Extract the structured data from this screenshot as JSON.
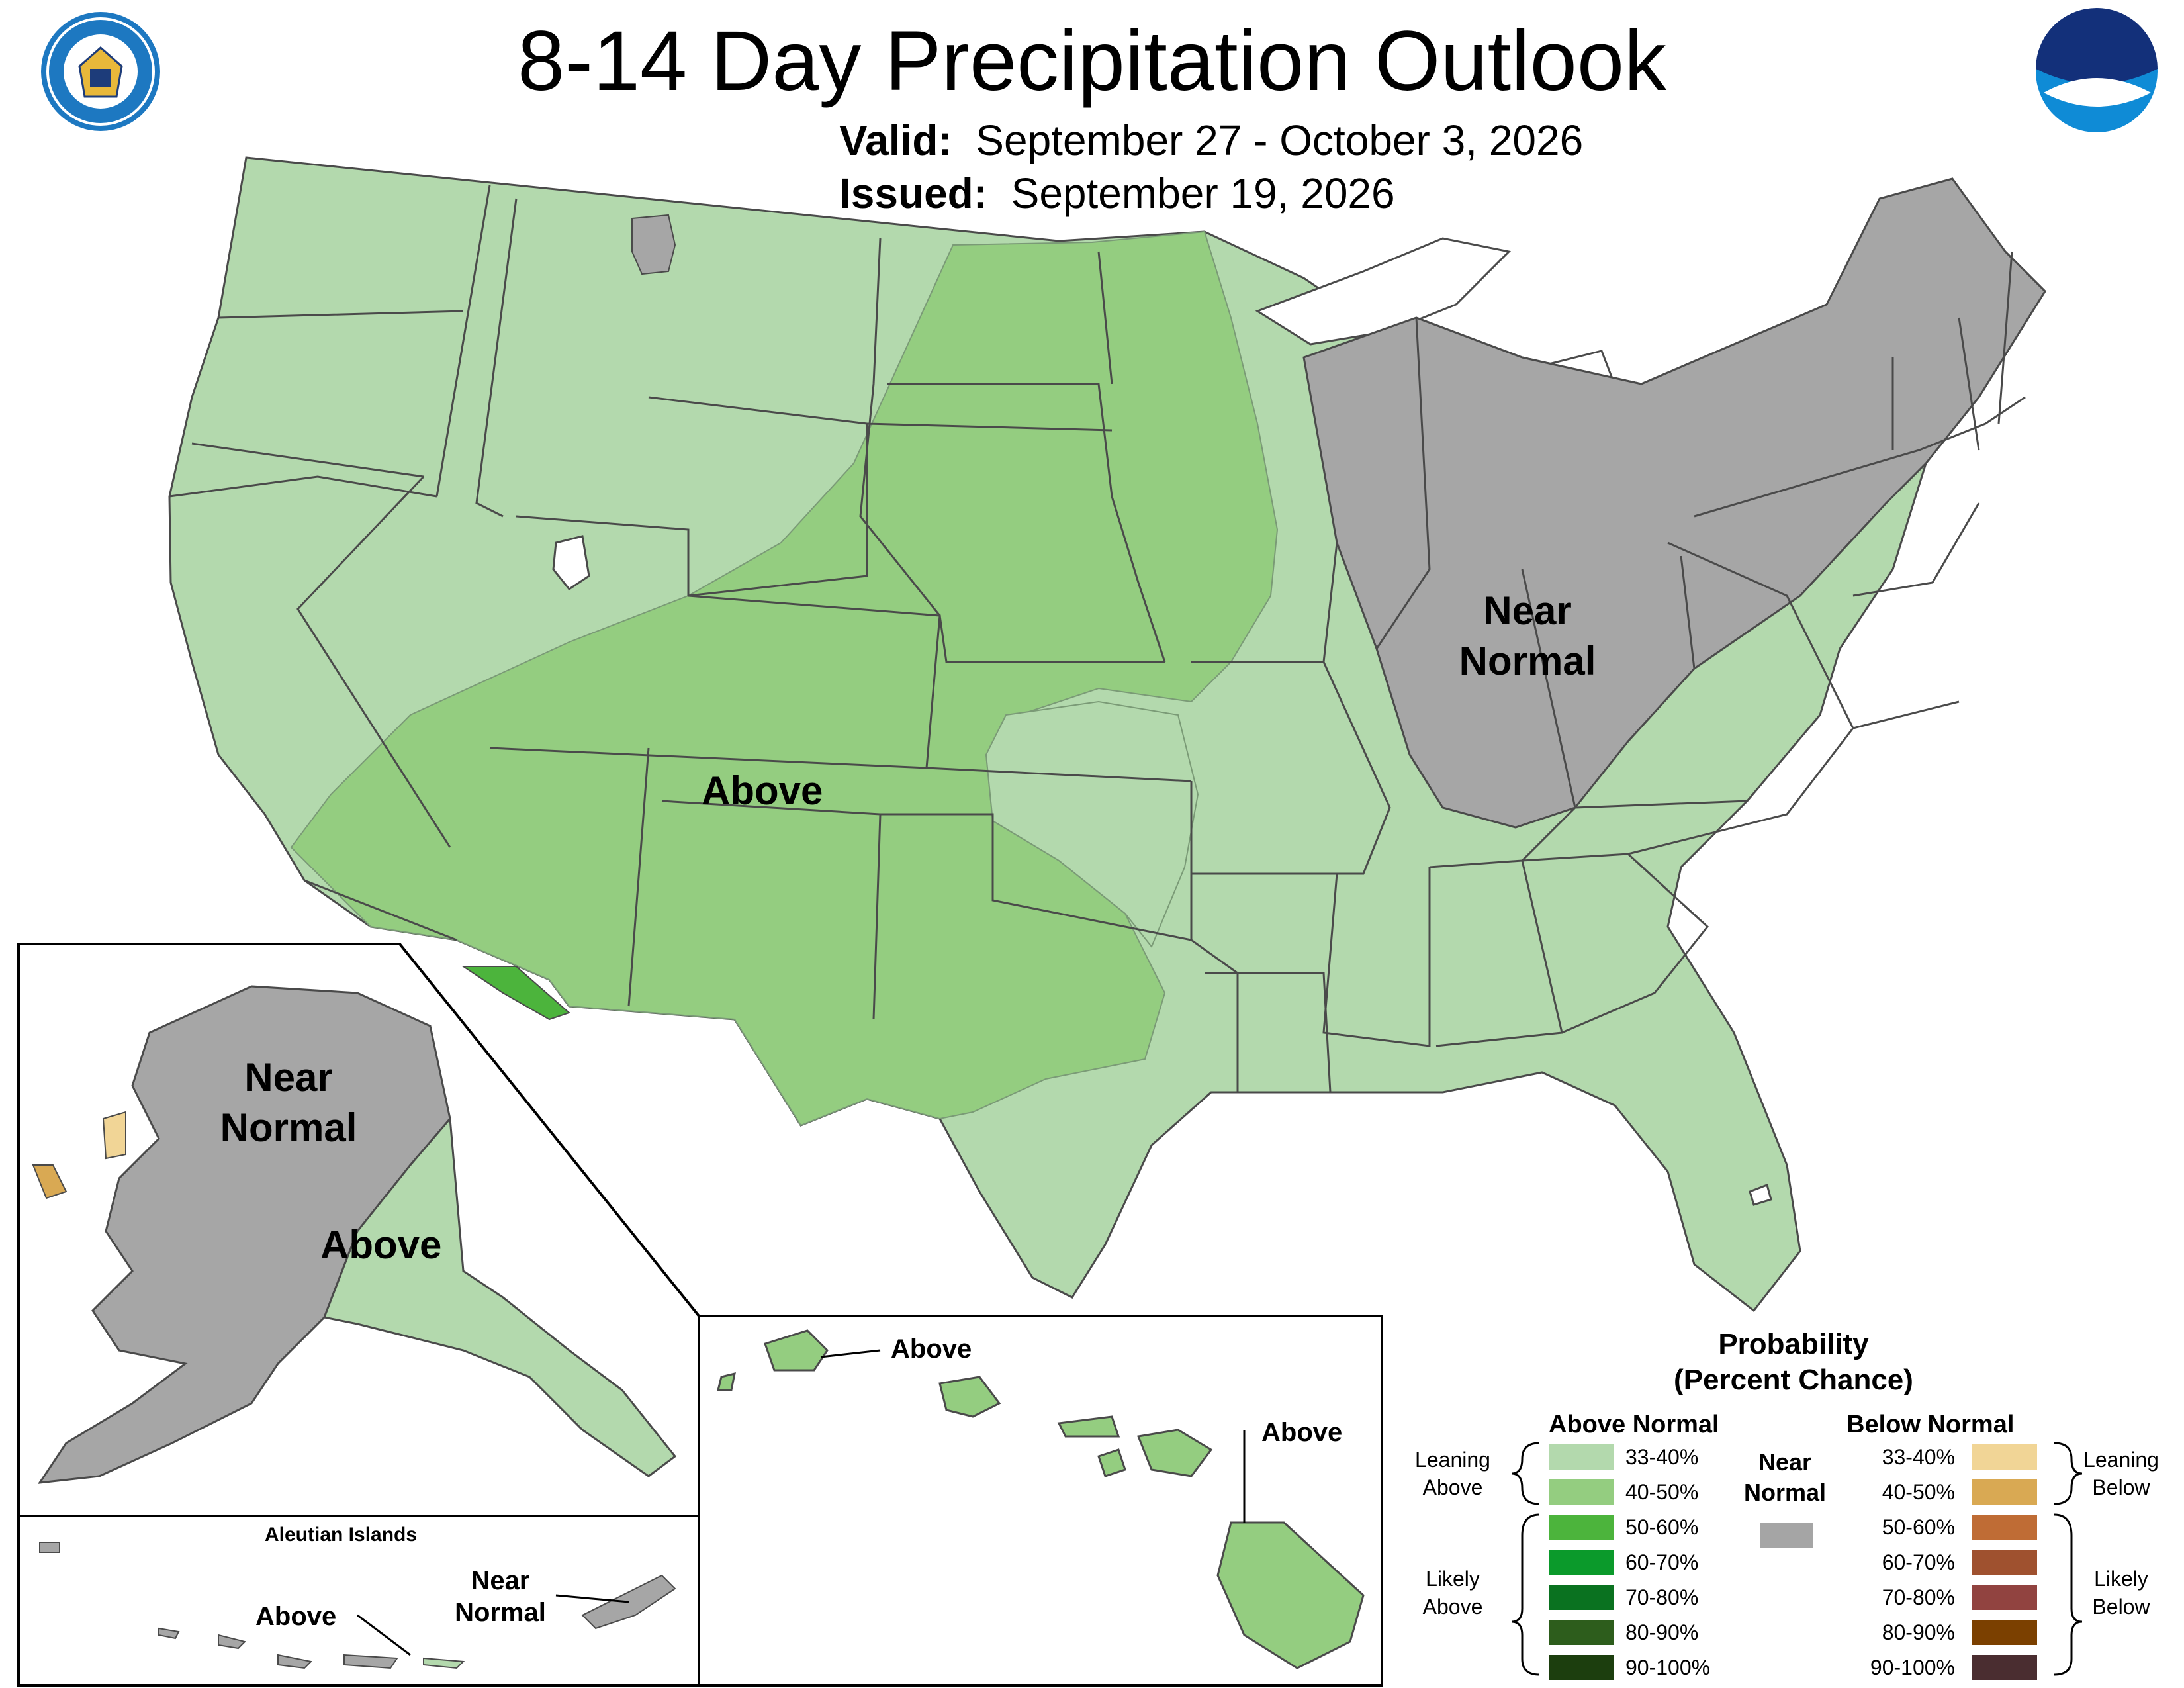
{
  "title": "8-14 Day Precipitation Outlook",
  "valid": {
    "label": "Valid:",
    "value": "September 27 - October 3, 2026"
  },
  "issued": {
    "label": "Issued:",
    "value": "September 19, 2026"
  },
  "logos": {
    "left": "department-of-commerce-seal",
    "right": "noaa-logo"
  },
  "regions": {
    "conus_above": "Above",
    "conus_near_normal": [
      "Near",
      "Normal"
    ],
    "alaska_near_normal": [
      "Near",
      "Normal"
    ],
    "alaska_above": "Above",
    "aleutian_title": "Aleutian Islands",
    "aleutian_above": "Above",
    "aleutian_near_normal": [
      "Near",
      "Normal"
    ],
    "hawaii_above_1": "Above",
    "hawaii_above_2": "Above"
  },
  "legend": {
    "title_line1": "Probability",
    "title_line2": "(Percent Chance)",
    "above_header": "Above Normal",
    "below_header": "Below Normal",
    "near_normal": [
      "Near",
      "Normal"
    ],
    "near_normal_color": "#a5a5a5",
    "leaning_above": [
      "Leaning",
      "Above"
    ],
    "likely_above": [
      "Likely",
      "Above"
    ],
    "leaning_below": [
      "Leaning",
      "Below"
    ],
    "likely_below": [
      "Likely",
      "Below"
    ],
    "above": [
      {
        "range": "33-40%",
        "color": "#b3d9ad"
      },
      {
        "range": "40-50%",
        "color": "#94cd80"
      },
      {
        "range": "50-60%",
        "color": "#4cb43c"
      },
      {
        "range": "60-70%",
        "color": "#0b9a2b"
      },
      {
        "range": "70-80%",
        "color": "#0a7220"
      },
      {
        "range": "80-90%",
        "color": "#2d5d1c"
      },
      {
        "range": "90-100%",
        "color": "#1c3e0e"
      }
    ],
    "below": [
      {
        "range": "33-40%",
        "color": "#f1d596"
      },
      {
        "range": "40-50%",
        "color": "#d9a953"
      },
      {
        "range": "50-60%",
        "color": "#bf6c35"
      },
      {
        "range": "60-70%",
        "color": "#9f512f"
      },
      {
        "range": "70-80%",
        "color": "#914340"
      },
      {
        "range": "80-90%",
        "color": "#7b4000"
      },
      {
        "range": "90-100%",
        "color": "#4a2d30"
      }
    ]
  }
}
